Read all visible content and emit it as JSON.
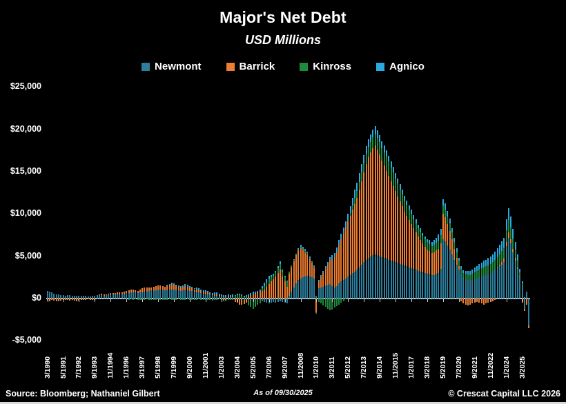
{
  "title": "Major's Net Debt",
  "subtitle": "USD Millions",
  "legend": [
    {
      "name": "Newmont",
      "color": "#2d7f9d"
    },
    {
      "name": "Barrick",
      "color": "#ed7d31"
    },
    {
      "name": "Kinross",
      "color": "#1f8a3d"
    },
    {
      "name": "Agnico",
      "color": "#29abe2"
    }
  ],
  "footer": {
    "source": "Source: Bloomberg; Nathaniel Gilbert",
    "as_of": "As of 09/30/2025",
    "copyright": "© Crescat Capital LLC 2026"
  },
  "chart_data": {
    "type": "bar",
    "stacked": true,
    "grid": false,
    "legend_position": "top",
    "start_period": "3/1990",
    "end_period": "9/2025",
    "interval_months": 2,
    "label_every_n_points": 7,
    "ylim": [
      -5000,
      25000
    ],
    "y_ticks": [
      {
        "label": "$25,000",
        "value": 25000
      },
      {
        "label": "$20,000",
        "value": 20000
      },
      {
        "label": "$15,000",
        "value": 15000
      },
      {
        "label": "$10,000",
        "value": 10000
      },
      {
        "label": "$5,000",
        "value": 5000
      },
      {
        "label": "$0",
        "value": 0
      },
      {
        "label": "-$5,000",
        "value": -5000
      }
    ],
    "x_labels": [
      "3/1990",
      "5/1991",
      "7/1992",
      "9/1993",
      "11/1994",
      "1/1996",
      "3/1997",
      "5/1998",
      "7/1999",
      "9/2000",
      "11/2001",
      "1/2003",
      "3/2004",
      "5/2005",
      "7/2006",
      "9/2007",
      "11/2008",
      "1/2010",
      "3/2011",
      "5/2012",
      "7/2013",
      "9/2014",
      "11/2015",
      "1/2017",
      "3/2018",
      "5/2019",
      "7/2020",
      "9/2021",
      "11/2022",
      "1/2024",
      "3/2025"
    ],
    "series": [
      {
        "name": "Newmont",
        "color": "#2d7f9d",
        "values": [
          900,
          820,
          700,
          600,
          520,
          450,
          420,
          380,
          350,
          400,
          430,
          360,
          320,
          290,
          310,
          330,
          350,
          300,
          280,
          260,
          300,
          350,
          400,
          420,
          390,
          360,
          400,
          450,
          500,
          520,
          490,
          460,
          500,
          550,
          600,
          620,
          650,
          700,
          740,
          710,
          660,
          700,
          750,
          800,
          850,
          900,
          950,
          900,
          950,
          1000,
          1050,
          1010,
          960,
          1000,
          1050,
          1100,
          1060,
          1010,
          960,
          920,
          950,
          1000,
          960,
          910,
          860,
          800,
          750,
          700,
          650,
          600,
          550,
          500,
          450,
          400,
          350,
          300,
          260,
          250,
          200,
          150,
          100,
          150,
          200,
          100,
          50,
          0,
          -100,
          -150,
          -100,
          -200,
          -250,
          -300,
          -250,
          -200,
          -150,
          -300,
          -400,
          -500,
          -600,
          -500,
          -400,
          -500,
          -400,
          -300,
          -400,
          -500,
          -600,
          300,
          800,
          1300,
          1800,
          2200,
          2400,
          2500,
          2600,
          2700,
          2600,
          2500,
          2400,
          300,
          1200,
          1300,
          1400,
          1500,
          1600,
          1700,
          1500,
          1300,
          1500,
          1800,
          2000,
          2200,
          2400,
          2600,
          2800,
          3000,
          3200,
          3400,
          3700,
          4000,
          4300,
          4600,
          4800,
          5000,
          5100,
          5200,
          5100,
          5000,
          4900,
          4800,
          4700,
          4600,
          4500,
          4400,
          4300,
          4200,
          4100,
          4000,
          3900,
          3800,
          3700,
          3600,
          3500,
          3400,
          3300,
          3200,
          3100,
          3000,
          2900,
          2900,
          2800,
          2800,
          2900,
          3000,
          3500,
          7000,
          6800,
          6300,
          5800,
          5200,
          4600,
          4000,
          3400,
          2900,
          2500,
          2300,
          2200,
          2100,
          2200,
          2300,
          2400,
          2500,
          2600,
          2700,
          2800,
          2900,
          3000,
          3200,
          3400,
          3600,
          3800,
          4000,
          4300,
          6200,
          7200,
          6500,
          5500,
          4500,
          3500,
          2500,
          1500,
          -1200,
          800,
          -3200
        ]
      },
      {
        "name": "Barrick",
        "color": "#ed7d31",
        "values": [
          -250,
          -300,
          -200,
          -250,
          -300,
          -300,
          -250,
          -200,
          -150,
          -200,
          -250,
          -200,
          -250,
          -300,
          -250,
          -200,
          -150,
          -150,
          -100,
          -150,
          -200,
          -150,
          -100,
          100,
          150,
          100,
          50,
          100,
          150,
          150,
          200,
          250,
          200,
          150,
          200,
          300,
          350,
          400,
          350,
          300,
          250,
          400,
          450,
          500,
          450,
          400,
          350,
          450,
          500,
          550,
          500,
          450,
          400,
          500,
          550,
          600,
          550,
          500,
          450,
          400,
          450,
          500,
          450,
          400,
          350,
          300,
          350,
          300,
          250,
          200,
          250,
          200,
          150,
          100,
          150,
          200,
          150,
          100,
          -150,
          -200,
          150,
          100,
          50,
          -400,
          -500,
          -700,
          -600,
          -500,
          -400,
          300,
          400,
          500,
          600,
          700,
          800,
          900,
          1100,
          1400,
          1700,
          2000,
          2300,
          2600,
          3000,
          3400,
          2600,
          2000,
          1400,
          2600,
          2900,
          3100,
          3300,
          3500,
          3600,
          3300,
          2900,
          2500,
          2100,
          1700,
          1300,
          -1600,
          800,
          1200,
          1600,
          2000,
          2400,
          2800,
          3200,
          3600,
          4000,
          4500,
          5000,
          5500,
          6000,
          6500,
          7000,
          7500,
          8000,
          8500,
          9200,
          9900,
          10600,
          11300,
          11900,
          12300,
          12700,
          12900,
          12500,
          12000,
          11400,
          10900,
          10400,
          9900,
          9400,
          8900,
          8400,
          7900,
          7400,
          6900,
          6400,
          6000,
          5600,
          5200,
          4800,
          4400,
          4000,
          3700,
          3400,
          3100,
          2900,
          2700,
          2600,
          2700,
          2800,
          2900,
          3000,
          3000,
          2800,
          2500,
          2200,
          1800,
          1300,
          800,
          400,
          -300,
          -600,
          -700,
          -800,
          -700,
          -600,
          -500,
          -400,
          -500,
          -600,
          -700,
          -600,
          -500,
          -400,
          -300,
          -200,
          100,
          200,
          300,
          400,
          500,
          600,
          500,
          400,
          300,
          200,
          100,
          -500,
          -300,
          -700,
          -300
        ]
      },
      {
        "name": "Kinross",
        "color": "#1f8a3d",
        "values": [
          0,
          0,
          0,
          0,
          0,
          0,
          0,
          0,
          0,
          0,
          0,
          0,
          0,
          0,
          0,
          0,
          0,
          0,
          0,
          0,
          0,
          0,
          0,
          0,
          0,
          0,
          0,
          0,
          0,
          0,
          0,
          0,
          0,
          0,
          0,
          -100,
          -150,
          -100,
          -150,
          -100,
          -150,
          -150,
          -200,
          -150,
          -100,
          -150,
          -200,
          -200,
          -150,
          -100,
          -150,
          -200,
          -150,
          -150,
          -100,
          -150,
          -200,
          -150,
          -100,
          -150,
          -200,
          -150,
          -100,
          -150,
          -200,
          -200,
          -150,
          -100,
          -150,
          -200,
          -150,
          -150,
          -200,
          -250,
          -200,
          -150,
          -100,
          -200,
          -150,
          -100,
          -150,
          -200,
          -150,
          200,
          300,
          400,
          300,
          200,
          250,
          -600,
          -700,
          -900,
          -700,
          -500,
          -400,
          300,
          400,
          500,
          600,
          500,
          400,
          500,
          600,
          700,
          600,
          500,
          600,
          250,
          200,
          150,
          100,
          100,
          150,
          100,
          150,
          200,
          150,
          100,
          50,
          -200,
          -400,
          -600,
          -800,
          -1000,
          -1200,
          -1400,
          -1300,
          -1100,
          -900,
          -700,
          -500,
          -300,
          -100,
          100,
          300,
          500,
          700,
          800,
          900,
          1000,
          1100,
          1200,
          1200,
          1200,
          1300,
          1300,
          1400,
          1500,
          1500,
          1600,
          1700,
          1700,
          1600,
          1600,
          1500,
          1500,
          1400,
          1400,
          1300,
          1300,
          1200,
          1200,
          1100,
          1100,
          1000,
          1000,
          900,
          900,
          850,
          850,
          800,
          850,
          900,
          950,
          1000,
          1000,
          950,
          900,
          850,
          800,
          750,
          700,
          650,
          600,
          550,
          600,
          650,
          700,
          750,
          800,
          850,
          900,
          950,
          1000,
          1000,
          1050,
          1100,
          1100,
          1150,
          1200,
          1250,
          1300,
          1300,
          1400,
          1500,
          1400,
          1200,
          1000,
          800,
          500,
          300,
          100,
          0,
          0
        ]
      },
      {
        "name": "Agnico",
        "color": "#29abe2",
        "values": [
          0,
          0,
          0,
          0,
          0,
          0,
          0,
          0,
          0,
          0,
          0,
          0,
          0,
          0,
          0,
          0,
          0,
          0,
          0,
          0,
          0,
          0,
          0,
          0,
          0,
          0,
          0,
          0,
          0,
          0,
          0,
          0,
          0,
          0,
          0,
          0,
          0,
          0,
          0,
          0,
          0,
          0,
          0,
          0,
          0,
          0,
          0,
          0,
          0,
          0,
          0,
          0,
          0,
          100,
          100,
          150,
          150,
          100,
          100,
          150,
          150,
          200,
          200,
          150,
          150,
          150,
          200,
          200,
          150,
          150,
          200,
          200,
          150,
          150,
          200,
          200,
          150,
          150,
          200,
          250,
          200,
          150,
          200,
          100,
          150,
          200,
          150,
          100,
          150,
          200,
          250,
          300,
          250,
          200,
          250,
          300,
          350,
          400,
          350,
          300,
          250,
          200,
          250,
          300,
          250,
          200,
          150,
          0,
          0,
          50,
          100,
          150,
          200,
          250,
          200,
          150,
          100,
          50,
          100,
          0,
          200,
          250,
          300,
          300,
          350,
          400,
          450,
          500,
          550,
          600,
          650,
          700,
          750,
          800,
          850,
          900,
          950,
          1000,
          1000,
          1000,
          950,
          900,
          900,
          900,
          900,
          950,
          900,
          850,
          800,
          800,
          750,
          700,
          700,
          650,
          650,
          600,
          600,
          550,
          550,
          500,
          500,
          500,
          450,
          450,
          400,
          400,
          350,
          350,
          400,
          450,
          500,
          550,
          600,
          700,
          750,
          750,
          700,
          650,
          600,
          550,
          500,
          450,
          400,
          350,
          300,
          350,
          400,
          450,
          500,
          550,
          600,
          650,
          700,
          750,
          800,
          850,
          900,
          950,
          1000,
          1050,
          1100,
          1150,
          1200,
          1300,
          1400,
          1300,
          1100,
          900,
          700,
          400,
          200,
          100,
          0,
          0
        ]
      }
    ]
  }
}
